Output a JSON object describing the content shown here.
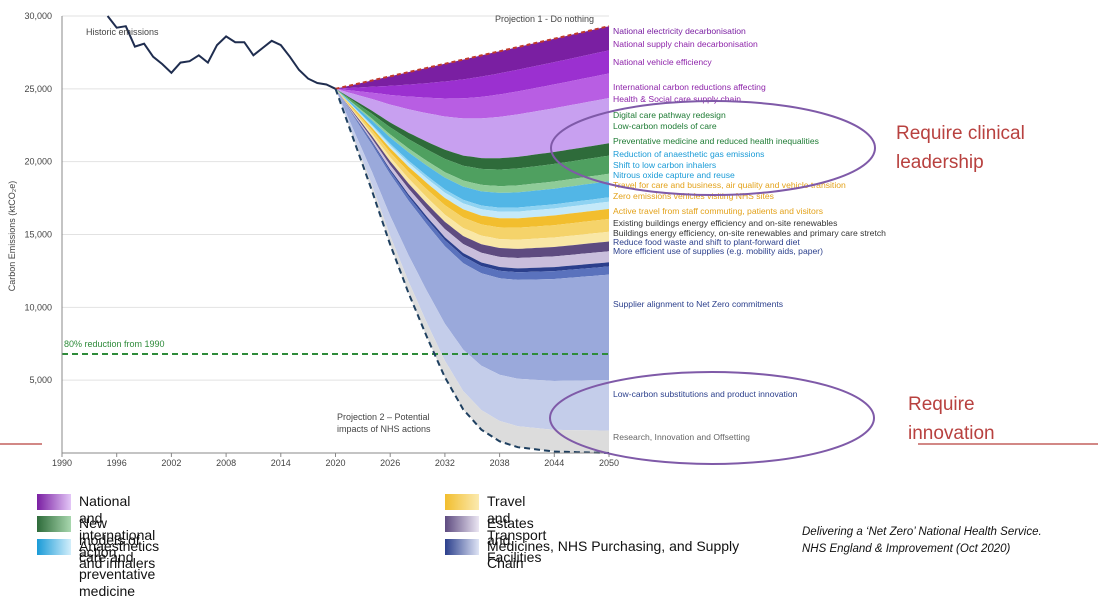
{
  "chart_data": {
    "type": "area",
    "title": "",
    "ylabel": "Carbon Emissions (ktCO₂e)",
    "xlabel": "",
    "xlim": [
      1990,
      2050
    ],
    "ylim": [
      0,
      30000
    ],
    "x_ticks": [
      "1990",
      "1996",
      "2002",
      "2008",
      "2014",
      "2020",
      "2026",
      "2032",
      "2038",
      "2044",
      "2050"
    ],
    "y_ticks": [
      {
        "value": 5000,
        "label": "5,000"
      },
      {
        "value": 10000,
        "label": "10,000"
      },
      {
        "value": 15000,
        "label": "15,000"
      },
      {
        "value": 20000,
        "label": "20,000"
      },
      {
        "value": 25000,
        "label": "25,000"
      },
      {
        "value": 30000,
        "label": "30,000"
      }
    ],
    "historic": {
      "name": "Historic emissions",
      "color": "#1f2d4f",
      "points": [
        [
          1995,
          30000
        ],
        [
          1996,
          29200
        ],
        [
          1997,
          29300
        ],
        [
          1998,
          27900
        ],
        [
          1999,
          28100
        ],
        [
          2000,
          27200
        ],
        [
          2001,
          26700
        ],
        [
          2002,
          26100
        ],
        [
          2003,
          26800
        ],
        [
          2004,
          26900
        ],
        [
          2005,
          27300
        ],
        [
          2006,
          26800
        ],
        [
          2007,
          28000
        ],
        [
          2008,
          28600
        ],
        [
          2009,
          28200
        ],
        [
          2010,
          28200
        ],
        [
          2011,
          27300
        ],
        [
          2012,
          27800
        ],
        [
          2013,
          28300
        ],
        [
          2014,
          28000
        ],
        [
          2015,
          27200
        ],
        [
          2016,
          26300
        ],
        [
          2017,
          25700
        ],
        [
          2018,
          25400
        ],
        [
          2019,
          25300
        ],
        [
          2020,
          25000
        ]
      ]
    },
    "projection1": {
      "name": "Projection 1 - Do nothing",
      "start": 25000,
      "end": 29300,
      "color": "#c0392b"
    },
    "projection2": {
      "name_line1": "Projection 2 – Potential",
      "name_line2": "impacts of NHS actions",
      "color": "#1f4060",
      "points": [
        [
          2020,
          25000
        ],
        [
          2022,
          21500
        ],
        [
          2024,
          18000
        ],
        [
          2026,
          14300
        ],
        [
          2028,
          11000
        ],
        [
          2030,
          8000
        ],
        [
          2032,
          5200
        ],
        [
          2034,
          3000
        ],
        [
          2036,
          1600
        ],
        [
          2038,
          800
        ],
        [
          2040,
          400
        ],
        [
          2044,
          100
        ],
        [
          2050,
          0
        ]
      ]
    },
    "reference_line": {
      "label": "80% reduction from 1990",
      "value": 6800,
      "color": "#2e8b3a"
    },
    "bands": [
      {
        "name": "National electricity decarbonisation",
        "end_top": 29300,
        "end_bottom": 28300,
        "color": "#7a1fa2",
        "label_color": "#7a1fa2"
      },
      {
        "name": "National supply chain decarbonisation",
        "end_top": 28300,
        "end_bottom": 27100,
        "color": "#9b30d0",
        "label_color": "#8e24aa"
      },
      {
        "name": "National vehicle efficiency",
        "end_top": 27100,
        "end_bottom": 25700,
        "color": "#b85ee3",
        "label_color": "#8e24aa"
      },
      {
        "name": "International carbon reductions affecting Health & Social care supply chain",
        "label_line1": "International carbon reductions affecting",
        "label_line2": "Health & Social care supply chain",
        "end_top": 25700,
        "end_bottom": 22900,
        "color": "#c8a0f0",
        "label_color": "#8e24aa"
      },
      {
        "name": "Digital care pathway redesign",
        "end_top": 22900,
        "end_bottom": 22100,
        "color": "#2e6b3a",
        "label_color": "#1e7b34"
      },
      {
        "name": "Low-carbon models of care",
        "end_top": 22100,
        "end_bottom": 20900,
        "color": "#4fa060",
        "label_color": "#1e7b34"
      },
      {
        "name": "Preventative medicine and reduced health inequalities",
        "end_top": 20900,
        "end_bottom": 20400,
        "color": "#8fcc98",
        "label_color": "#1e7b34"
      },
      {
        "name": "Reduction of anaesthetic gas emissions",
        "end_top": 20400,
        "end_bottom": 19300,
        "color": "#52b6e6",
        "label_color": "#1a9bd7"
      },
      {
        "name": "Shift to low carbon inhalers",
        "end_top": 19300,
        "end_bottom": 19000,
        "color": "#8fd3f2",
        "label_color": "#1a9bd7"
      },
      {
        "name": "Nitrous oxide capture and reuse",
        "end_top": 19000,
        "end_bottom": 18500,
        "color": "#c4e9f9",
        "label_color": "#1a9bd7"
      },
      {
        "name": "Travel for care and business, air quality and vehicle transition",
        "end_top": 18500,
        "end_bottom": 17800,
        "color": "#f2be2e",
        "label_color": "#e3a21a"
      },
      {
        "name": "Zero emissions vehicles visiting NHS sites",
        "end_top": 17800,
        "end_bottom": 16900,
        "color": "#f5d36a",
        "label_color": "#e3a21a"
      },
      {
        "name": "Active travel from staff commuting, patients and visitors",
        "end_top": 16900,
        "end_bottom": 16200,
        "color": "#f9e7a6",
        "label_color": "#e3a21a"
      },
      {
        "name": "Existing buildings energy efficiency and on-site renewables",
        "end_top": 16200,
        "end_bottom": 15500,
        "color": "#5e4b80",
        "label_color": "#333333"
      },
      {
        "name": "Buildings energy efficiency, on-site renewables and primary care stretch",
        "end_top": 15500,
        "end_bottom": 14700,
        "color": "#c9bedc",
        "label_color": "#333333"
      },
      {
        "name": "Reduce food waste and shift to plant-forward diet",
        "end_top": 14700,
        "end_bottom": 14400,
        "color": "#2b3f8c",
        "label_color": "#2b3f8c"
      },
      {
        "name": "More efficient use of supplies (e.g. mobility aids, paper)",
        "end_top": 14400,
        "end_bottom": 13800,
        "color": "#5a72bd",
        "label_color": "#2b3f8c"
      },
      {
        "name": "Supplier alignment to Net Zero commitments",
        "end_top": 13800,
        "end_bottom": 5800,
        "color": "#9aa9db",
        "label_color": "#2b3f8c"
      },
      {
        "name": "Low-carbon substitutions and product innovation",
        "end_top": 5800,
        "end_bottom": 1800,
        "color": "#c4cdea",
        "label_color": "#2b3f8c"
      },
      {
        "name": "Research, Innovation and Offsetting",
        "end_top": 1800,
        "end_bottom": 0,
        "color": "#dcdcdc",
        "label_color": "#666666"
      }
    ],
    "legend": [
      {
        "label": "National and international action",
        "color_dark": "#7a1fa2",
        "color_light": "#e3c6f7"
      },
      {
        "label": "New models of care and preventative medicine",
        "color_dark": "#2e6b3a",
        "color_light": "#a8d7ae"
      },
      {
        "label": "Anaesthetics and inhalers",
        "color_dark": "#1a9bd7",
        "color_light": "#d2eefb"
      },
      {
        "label": "Travel and Transport",
        "color_dark": "#f2be2e",
        "color_light": "#fbeab0"
      },
      {
        "label": "Estates and Facilities",
        "color_dark": "#5e4b80",
        "color_light": "#ebe6f3"
      },
      {
        "label": "Medicines, NHS Purchasing, and Supply Chain",
        "color_dark": "#2b3f8c",
        "color_light": "#dfe4f5"
      }
    ],
    "callouts": [
      {
        "line1": "Require clinical",
        "line2": "leadership"
      },
      {
        "line1": "Require",
        "line2": "innovation"
      }
    ],
    "citation": {
      "line1": "Delivering a ‘Net Zero’ National Health Service.",
      "line2": "NHS England & Improvement (Oct 2020)"
    }
  }
}
